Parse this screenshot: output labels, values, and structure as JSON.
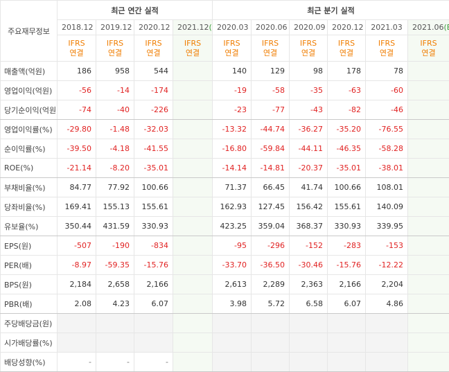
{
  "table": {
    "corner": "주요재무정보",
    "sections": [
      {
        "title": "최근 연간 실적",
        "span": 4
      },
      {
        "title": "최근 분기 실적",
        "span": 6
      }
    ],
    "periods": [
      {
        "date": "2018.12"
      },
      {
        "date": "2019.12"
      },
      {
        "date": "2020.12"
      },
      {
        "date": "2021.12",
        "tag": "(E)"
      },
      {
        "date": "2020.03"
      },
      {
        "date": "2020.06"
      },
      {
        "date": "2020.09"
      },
      {
        "date": "2020.12"
      },
      {
        "date": "2021.03"
      },
      {
        "date": "2021.06",
        "tag": "(E)"
      }
    ],
    "standards": [
      {
        "line1": "IFRS",
        "line2": "연결"
      },
      {
        "line1": "IFRS",
        "line2": "연결"
      },
      {
        "line1": "IFRS",
        "line2": "연결"
      },
      {
        "line1": "IFRS",
        "line2": "연결"
      },
      {
        "line1": "IFRS",
        "line2": "연결"
      },
      {
        "line1": "IFRS",
        "line2": "연결"
      },
      {
        "line1": "IFRS",
        "line2": "연결"
      },
      {
        "line1": "IFRS",
        "line2": "연결"
      },
      {
        "line1": "IFRS",
        "line2": "연결"
      },
      {
        "line1": "IFRS",
        "line2": "연결"
      }
    ],
    "groups": [
      {
        "rows": [
          {
            "label": "매출액(억원)",
            "cells": [
              "186",
              "958",
              "544",
              null,
              "140",
              "129",
              "98",
              "178",
              "78",
              null
            ]
          },
          {
            "label": "영업이익(억원)",
            "cells": [
              "-56",
              "-14",
              "-174",
              null,
              "-19",
              "-58",
              "-35",
              "-63",
              "-60",
              null
            ]
          },
          {
            "label": "당기순이익(억원)",
            "cells": [
              "-74",
              "-40",
              "-226",
              null,
              "-23",
              "-77",
              "-43",
              "-82",
              "-46",
              null
            ]
          }
        ]
      },
      {
        "rows": [
          {
            "label": "영업이익률(%)",
            "cells": [
              "-29.80",
              "-1.48",
              "-32.03",
              null,
              "-13.32",
              "-44.74",
              "-36.27",
              "-35.20",
              "-76.55",
              null
            ]
          },
          {
            "label": "순이익률(%)",
            "cells": [
              "-39.50",
              "-4.18",
              "-41.55",
              null,
              "-16.80",
              "-59.84",
              "-44.11",
              "-46.35",
              "-58.28",
              null
            ]
          },
          {
            "label": "ROE(%)",
            "cells": [
              "-21.14",
              "-8.20",
              "-35.01",
              null,
              "-14.14",
              "-14.81",
              "-20.37",
              "-35.01",
              "-38.01",
              null
            ]
          }
        ]
      },
      {
        "rows": [
          {
            "label": "부채비율(%)",
            "cells": [
              "84.77",
              "77.92",
              "100.66",
              null,
              "71.37",
              "66.45",
              "41.74",
              "100.66",
              "108.01",
              null
            ]
          },
          {
            "label": "당좌비율(%)",
            "cells": [
              "169.41",
              "155.13",
              "155.61",
              null,
              "162.93",
              "127.45",
              "156.42",
              "155.61",
              "140.09",
              null
            ]
          },
          {
            "label": "유보율(%)",
            "cells": [
              "350.44",
              "431.59",
              "330.93",
              null,
              "423.25",
              "359.04",
              "368.37",
              "330.93",
              "339.95",
              null
            ]
          }
        ]
      },
      {
        "rows": [
          {
            "label": "EPS(원)",
            "cells": [
              "-507",
              "-190",
              "-834",
              null,
              "-95",
              "-296",
              "-152",
              "-283",
              "-153",
              null
            ]
          },
          {
            "label": "PER(배)",
            "cells": [
              "-8.97",
              "-59.35",
              "-15.76",
              null,
              "-33.70",
              "-36.50",
              "-30.46",
              "-15.76",
              "-12.22",
              null
            ]
          },
          {
            "label": "BPS(원)",
            "cells": [
              "2,184",
              "2,658",
              "2,166",
              null,
              "2,613",
              "2,289",
              "2,363",
              "2,166",
              "2,204",
              null
            ]
          },
          {
            "label": "PBR(배)",
            "cells": [
              "2.08",
              "4.23",
              "6.07",
              null,
              "3.98",
              "5.72",
              "6.58",
              "6.07",
              "4.86",
              null
            ]
          }
        ]
      },
      {
        "rows": [
          {
            "label": "주당배당금(원)",
            "cells": [
              null,
              null,
              null,
              null,
              null,
              null,
              null,
              null,
              null,
              null
            ]
          },
          {
            "label": "시가배당률(%)",
            "cells": [
              null,
              null,
              null,
              null,
              null,
              null,
              null,
              null,
              null,
              null
            ]
          },
          {
            "label": "배당성향(%)",
            "cells": [
              "-",
              "-",
              "-",
              null,
              null,
              null,
              null,
              null,
              null,
              null
            ]
          }
        ]
      }
    ]
  }
}
